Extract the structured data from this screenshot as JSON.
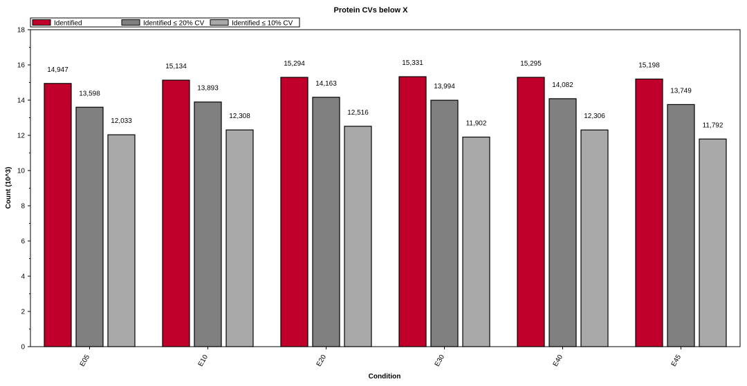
{
  "chart_data": {
    "type": "bar",
    "title": "Protein CVs below X",
    "xlabel": "Condition",
    "ylabel": "Count (10^3)",
    "ylim": [
      0,
      18
    ],
    "yticks": [
      0,
      2,
      4,
      6,
      8,
      10,
      12,
      14,
      16,
      18
    ],
    "grid": false,
    "legend_position": "top-left",
    "categories": [
      "E05",
      "E10",
      "E20",
      "E30",
      "E40",
      "E45"
    ],
    "series": [
      {
        "name": "Identified",
        "color": "#c0002a",
        "values": [
          14.947,
          15.134,
          15.294,
          15.331,
          15.295,
          15.198
        ],
        "labels": [
          "14,947",
          "15,134",
          "15,294",
          "15,331",
          "15,295",
          "15,198"
        ]
      },
      {
        "name": "Identified ≤ 20% CV",
        "color": "#808080",
        "values": [
          13.598,
          13.893,
          14.163,
          13.994,
          14.082,
          13.749
        ],
        "labels": [
          "13,598",
          "13,893",
          "14,163",
          "13,994",
          "14,082",
          "13,749"
        ]
      },
      {
        "name": "Identified ≤ 10% CV",
        "color": "#a9a9a9",
        "values": [
          12.033,
          12.308,
          12.516,
          11.902,
          12.306,
          11.792
        ],
        "labels": [
          "12,033",
          "12,308",
          "12,516",
          "11,902",
          "12,306",
          "11,792"
        ]
      }
    ]
  }
}
